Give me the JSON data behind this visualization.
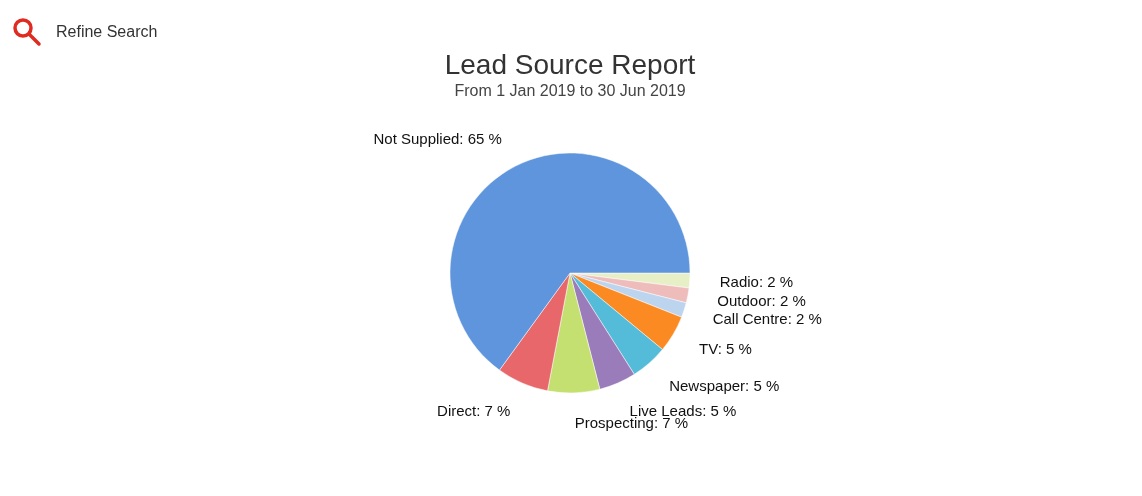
{
  "chart_data": {
    "type": "pie",
    "title": "Lead Source Report",
    "subtitle": "From 1 Jan 2019 to 30 Jun 2019",
    "annotations": [
      "Refine Search"
    ],
    "categories": [
      "Radio",
      "Outdoor",
      "Call Centre",
      "TV",
      "Newspaper",
      "Live Leads",
      "Prospecting",
      "Direct",
      "Not Supplied"
    ],
    "values": [
      2,
      2,
      2,
      5,
      5,
      5,
      7,
      7,
      65
    ],
    "value_labels": [
      "2 %",
      "2 %",
      "2 %",
      "5 %",
      "5 %",
      "5 %",
      "7 %",
      "7 %",
      "65 %"
    ],
    "colors": [
      "#e6efc6",
      "#efbcbc",
      "#bcd4ee",
      "#fb8a23",
      "#54bcd8",
      "#9a7cbb",
      "#c3e070",
      "#e8676a",
      "#5e95dc"
    ]
  }
}
